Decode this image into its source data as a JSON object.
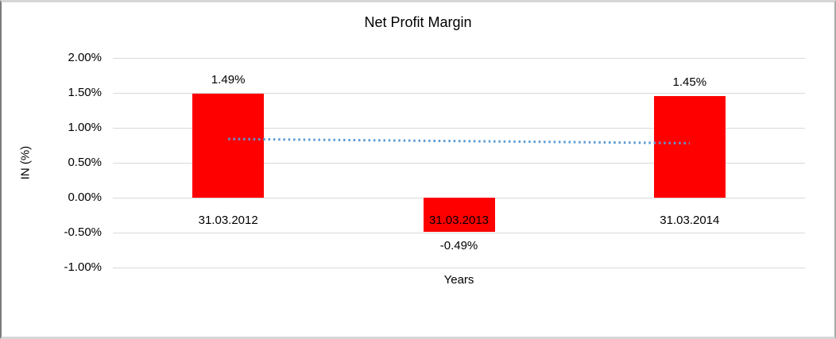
{
  "chart_data": {
    "type": "bar",
    "title": "Net Profit Margin",
    "xlabel": "Years",
    "ylabel": "IN (%)",
    "categories": [
      "31.03.2012",
      "31.03.2013",
      "31.03.2014"
    ],
    "values": [
      1.49,
      -0.49,
      1.45
    ],
    "data_labels": [
      "1.49%",
      "-0.49%",
      "1.45%"
    ],
    "bar_color": "#ff0000",
    "ylim": [
      -1.0,
      2.0
    ],
    "yticks": [
      {
        "label": "2.00%",
        "value": 2.0
      },
      {
        "label": "1.50%",
        "value": 1.5
      },
      {
        "label": "1.00%",
        "value": 1.0
      },
      {
        "label": "0.50%",
        "value": 0.5
      },
      {
        "label": "0.00%",
        "value": 0.0
      },
      {
        "label": "-0.50%",
        "value": -0.5
      },
      {
        "label": "-1.00%",
        "value": -1.0
      }
    ],
    "grid": true,
    "gridline_color": "#d9d9d9",
    "legend": "none",
    "trendline": {
      "type": "linear",
      "style": "dotted",
      "color": "#5b9bd5",
      "from_category_index": 0,
      "to_category_index": 2,
      "start_value": 0.84,
      "end_value": 0.78
    },
    "text_color": "#000000",
    "background": "#ffffff"
  }
}
